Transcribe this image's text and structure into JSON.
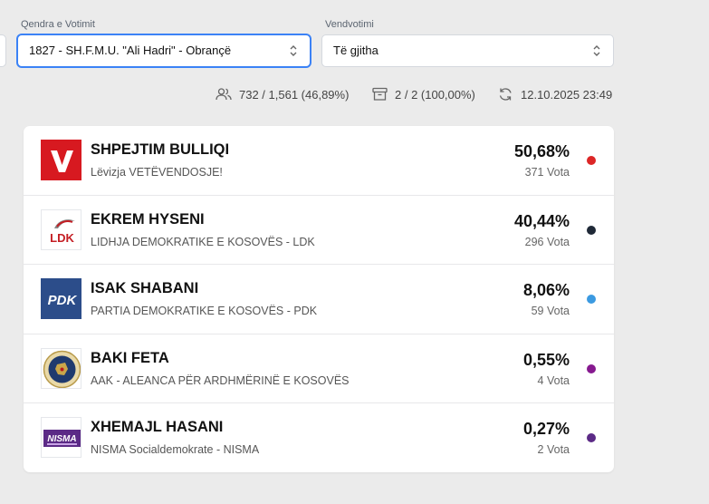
{
  "filters": {
    "center_label": "Qendra e Votimit",
    "center_value": "1827 - SH.F.M.U. \"Ali Hadri\" - Obrançë",
    "station_label": "Vendvotimi",
    "station_value": "Të gjitha"
  },
  "stats": {
    "voters": "732 / 1,561 (46,89%)",
    "stations": "2 / 2 (100,00%)",
    "updated": "12.10.2025 23:49"
  },
  "candidates": [
    {
      "name": "SHPEJTIM BULLIQI",
      "party": "Lëvizja VETËVENDOSJE!",
      "percent": "50,68%",
      "votes": "371 Vota",
      "color": "#dc2626",
      "logo": "vv-logo-icon"
    },
    {
      "name": "EKREM HYSENI",
      "party": "LIDHJA DEMOKRATIKE E KOSOVËS - LDK",
      "percent": "40,44%",
      "votes": "296 Vota",
      "color": "#1f2937",
      "logo": "ldk-logo-icon"
    },
    {
      "name": "ISAK SHABANI",
      "party": "PARTIA DEMOKRATIKE E KOSOVËS - PDK",
      "percent": "8,06%",
      "votes": "59 Vota",
      "color": "#3b9ae1",
      "logo": "pdk-logo-icon"
    },
    {
      "name": "BAKI FETA",
      "party": "AAK - ALEANCA PËR ARDHMËRINË E KOSOVËS",
      "percent": "0,55%",
      "votes": "4 Vota",
      "color": "#86198f",
      "logo": "aak-logo-icon"
    },
    {
      "name": "XHEMAJL HASANI",
      "party": "NISMA Socialdemokrate - NISMA",
      "percent": "0,27%",
      "votes": "2 Vota",
      "color": "#5b2a86",
      "logo": "nisma-logo-icon"
    }
  ]
}
